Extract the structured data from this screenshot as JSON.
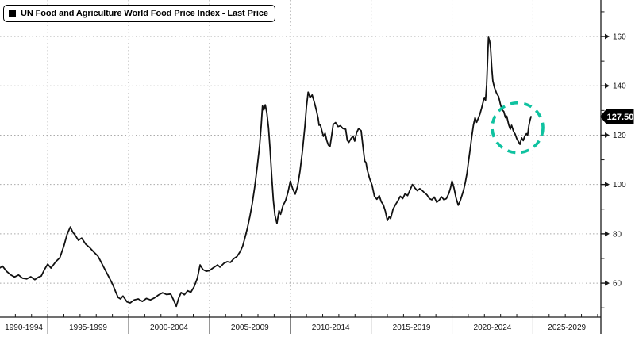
{
  "legend": {
    "label": "UN Food and Agriculture World Food Price Index - Last Price",
    "marker_color": "#000000"
  },
  "last_price": {
    "value": "127.50",
    "bg": "#000000",
    "text_color": "#ffffff"
  },
  "chart_data": {
    "type": "line",
    "title": "UN Food and Agriculture World Food Price Index - Last Price",
    "grid": "dotted",
    "background": "#ffffff",
    "line_color": "#111111",
    "grid_color": "#ababab",
    "axis_color": "#1a1a1a",
    "legend_position": "top-left",
    "last_price": 127.5,
    "x_axis": {
      "start_year": 1992.05,
      "end_year": 2029.2,
      "period_labels": [
        "1990-1994",
        "1995-1999",
        "2000-2004",
        "2005-2009",
        "2010-2014",
        "2015-2019",
        "2020-2024",
        "2025-2029"
      ],
      "period_boundaries": [
        1995,
        2000,
        2005,
        2010,
        2015,
        2020,
        2025
      ],
      "minor_tick_interval_years": 1
    },
    "y_axis": {
      "side": "right",
      "major_ticks": [
        60,
        80,
        100,
        120,
        140,
        160
      ],
      "minor_tick_interval": 10,
      "top_value": 174.8,
      "bottom_value": 46.2
    },
    "annotation_circle": {
      "center_year": 2024.05,
      "center_value": 123.0,
      "radius_years": 1.57,
      "radius_values": 10.1,
      "color": "#0fc2a0",
      "style": "dashed"
    },
    "series": [
      {
        "name": "UN Food and Agriculture World Food Price Index",
        "color": "#111111",
        "points": [
          [
            1992.05,
            66.2
          ],
          [
            1992.2,
            66.9
          ],
          [
            1992.45,
            64.8
          ],
          [
            1992.7,
            63.4
          ],
          [
            1992.95,
            62.5
          ],
          [
            1993.2,
            63.3
          ],
          [
            1993.45,
            62.0
          ],
          [
            1993.7,
            61.7
          ],
          [
            1993.95,
            62.6
          ],
          [
            1994.2,
            61.4
          ],
          [
            1994.45,
            62.5
          ],
          [
            1994.6,
            62.9
          ],
          [
            1994.8,
            65.5
          ],
          [
            1995.0,
            67.7
          ],
          [
            1995.2,
            66.1
          ],
          [
            1995.5,
            68.7
          ],
          [
            1995.75,
            70.3
          ],
          [
            1996.0,
            75.1
          ],
          [
            1996.2,
            79.9
          ],
          [
            1996.4,
            82.8
          ],
          [
            1996.55,
            80.7
          ],
          [
            1996.7,
            79.4
          ],
          [
            1996.9,
            77.4
          ],
          [
            1997.1,
            78.3
          ],
          [
            1997.35,
            75.8
          ],
          [
            1997.6,
            74.4
          ],
          [
            1997.85,
            72.6
          ],
          [
            1998.1,
            71.0
          ],
          [
            1998.3,
            68.5
          ],
          [
            1998.5,
            66.0
          ],
          [
            1998.7,
            63.5
          ],
          [
            1998.9,
            61.0
          ],
          [
            1999.05,
            59.0
          ],
          [
            1999.2,
            56.5
          ],
          [
            1999.35,
            54.2
          ],
          [
            1999.5,
            53.6
          ],
          [
            1999.65,
            54.8
          ],
          [
            1999.9,
            52.4
          ],
          [
            2000.1,
            52.0
          ],
          [
            2000.35,
            53.2
          ],
          [
            2000.6,
            53.6
          ],
          [
            2000.85,
            52.6
          ],
          [
            2001.1,
            53.8
          ],
          [
            2001.35,
            53.2
          ],
          [
            2001.6,
            54.0
          ],
          [
            2001.85,
            55.2
          ],
          [
            2002.1,
            56.1
          ],
          [
            2002.35,
            55.4
          ],
          [
            2002.6,
            55.6
          ],
          [
            2002.78,
            53.2
          ],
          [
            2002.95,
            50.6
          ],
          [
            2003.1,
            54.0
          ],
          [
            2003.25,
            56.2
          ],
          [
            2003.45,
            55.3
          ],
          [
            2003.65,
            56.9
          ],
          [
            2003.85,
            56.3
          ],
          [
            2004.05,
            58.5
          ],
          [
            2004.25,
            62.0
          ],
          [
            2004.42,
            67.4
          ],
          [
            2004.6,
            65.5
          ],
          [
            2004.8,
            64.8
          ],
          [
            2005.0,
            65.1
          ],
          [
            2005.25,
            66.3
          ],
          [
            2005.5,
            67.4
          ],
          [
            2005.65,
            66.5
          ],
          [
            2005.9,
            68.1
          ],
          [
            2006.1,
            68.7
          ],
          [
            2006.3,
            68.4
          ],
          [
            2006.5,
            69.9
          ],
          [
            2006.7,
            70.8
          ],
          [
            2006.9,
            72.8
          ],
          [
            2007.05,
            75.0
          ],
          [
            2007.2,
            78.5
          ],
          [
            2007.35,
            82.5
          ],
          [
            2007.5,
            87.0
          ],
          [
            2007.65,
            92.5
          ],
          [
            2007.8,
            99.0
          ],
          [
            2007.95,
            107.0
          ],
          [
            2008.1,
            115.5
          ],
          [
            2008.2,
            124.0
          ],
          [
            2008.28,
            131.8
          ],
          [
            2008.36,
            130.2
          ],
          [
            2008.45,
            132.3
          ],
          [
            2008.55,
            129.0
          ],
          [
            2008.65,
            123.0
          ],
          [
            2008.75,
            114.0
          ],
          [
            2008.85,
            103.5
          ],
          [
            2008.95,
            93.5
          ],
          [
            2009.05,
            87.5
          ],
          [
            2009.17,
            84.2
          ],
          [
            2009.3,
            89.4
          ],
          [
            2009.4,
            87.9
          ],
          [
            2009.55,
            91.5
          ],
          [
            2009.7,
            93.4
          ],
          [
            2009.85,
            96.7
          ],
          [
            2010.0,
            101.3
          ],
          [
            2010.15,
            98.2
          ],
          [
            2010.3,
            96.1
          ],
          [
            2010.45,
            99.2
          ],
          [
            2010.6,
            105.5
          ],
          [
            2010.75,
            113.5
          ],
          [
            2010.9,
            123.5
          ],
          [
            2011.0,
            131.5
          ],
          [
            2011.1,
            137.4
          ],
          [
            2011.22,
            135.3
          ],
          [
            2011.35,
            136.3
          ],
          [
            2011.5,
            133.0
          ],
          [
            2011.62,
            129.8
          ],
          [
            2011.72,
            126.8
          ],
          [
            2011.78,
            124.0
          ],
          [
            2011.85,
            124.3
          ],
          [
            2011.95,
            121.8
          ],
          [
            2012.05,
            119.5
          ],
          [
            2012.15,
            120.8
          ],
          [
            2012.25,
            117.9
          ],
          [
            2012.35,
            116.0
          ],
          [
            2012.45,
            115.3
          ],
          [
            2012.55,
            119.5
          ],
          [
            2012.65,
            124.3
          ],
          [
            2012.8,
            125.1
          ],
          [
            2012.95,
            123.5
          ],
          [
            2013.1,
            123.8
          ],
          [
            2013.25,
            122.7
          ],
          [
            2013.42,
            122.4
          ],
          [
            2013.52,
            117.9
          ],
          [
            2013.62,
            117.1
          ],
          [
            2013.75,
            118.6
          ],
          [
            2013.88,
            119.6
          ],
          [
            2013.98,
            117.6
          ],
          [
            2014.1,
            121.0
          ],
          [
            2014.22,
            122.7
          ],
          [
            2014.38,
            121.8
          ],
          [
            2014.5,
            114.7
          ],
          [
            2014.6,
            109.5
          ],
          [
            2014.68,
            108.9
          ],
          [
            2014.75,
            106.0
          ],
          [
            2014.9,
            102.5
          ],
          [
            2015.05,
            99.8
          ],
          [
            2015.2,
            95.3
          ],
          [
            2015.35,
            94.0
          ],
          [
            2015.5,
            95.5
          ],
          [
            2015.62,
            93.0
          ],
          [
            2015.75,
            91.8
          ],
          [
            2015.88,
            89.0
          ],
          [
            2016.0,
            85.4
          ],
          [
            2016.12,
            87.0
          ],
          [
            2016.2,
            86.2
          ],
          [
            2016.35,
            90.0
          ],
          [
            2016.5,
            91.8
          ],
          [
            2016.65,
            93.4
          ],
          [
            2016.8,
            95.2
          ],
          [
            2016.95,
            94.3
          ],
          [
            2017.1,
            96.3
          ],
          [
            2017.25,
            95.5
          ],
          [
            2017.4,
            97.8
          ],
          [
            2017.55,
            100.0
          ],
          [
            2017.7,
            98.6
          ],
          [
            2017.85,
            97.5
          ],
          [
            2018.0,
            98.3
          ],
          [
            2018.15,
            97.6
          ],
          [
            2018.3,
            96.6
          ],
          [
            2018.45,
            95.8
          ],
          [
            2018.6,
            94.3
          ],
          [
            2018.75,
            93.8
          ],
          [
            2018.9,
            94.9
          ],
          [
            2019.05,
            92.8
          ],
          [
            2019.2,
            93.6
          ],
          [
            2019.35,
            95.0
          ],
          [
            2019.5,
            93.8
          ],
          [
            2019.65,
            94.3
          ],
          [
            2019.8,
            96.4
          ],
          [
            2019.9,
            98.5
          ],
          [
            2020.0,
            101.4
          ],
          [
            2020.12,
            98.5
          ],
          [
            2020.25,
            94.5
          ],
          [
            2020.38,
            91.6
          ],
          [
            2020.5,
            93.3
          ],
          [
            2020.62,
            95.8
          ],
          [
            2020.72,
            97.9
          ],
          [
            2020.82,
            100.8
          ],
          [
            2020.92,
            104.5
          ],
          [
            2021.02,
            109.5
          ],
          [
            2021.12,
            114.5
          ],
          [
            2021.22,
            119.5
          ],
          [
            2021.32,
            124.0
          ],
          [
            2021.42,
            127.1
          ],
          [
            2021.52,
            125.2
          ],
          [
            2021.62,
            126.8
          ],
          [
            2021.72,
            128.5
          ],
          [
            2021.82,
            130.8
          ],
          [
            2021.92,
            133.5
          ],
          [
            2022.0,
            135.3
          ],
          [
            2022.07,
            134.2
          ],
          [
            2022.14,
            140.5
          ],
          [
            2022.25,
            159.7
          ],
          [
            2022.32,
            158.2
          ],
          [
            2022.38,
            155.5
          ],
          [
            2022.45,
            147.5
          ],
          [
            2022.52,
            142.0
          ],
          [
            2022.62,
            139.3
          ],
          [
            2022.75,
            137.0
          ],
          [
            2022.88,
            135.6
          ],
          [
            2023.0,
            132.2
          ],
          [
            2023.1,
            130.2
          ],
          [
            2023.2,
            129.6
          ],
          [
            2023.3,
            127.1
          ],
          [
            2023.38,
            127.7
          ],
          [
            2023.5,
            124.2
          ],
          [
            2023.6,
            122.4
          ],
          [
            2023.68,
            124.0
          ],
          [
            2023.8,
            121.5
          ],
          [
            2023.9,
            120.4
          ],
          [
            2024.0,
            118.6
          ],
          [
            2024.1,
            117.4
          ],
          [
            2024.2,
            116.3
          ],
          [
            2024.3,
            118.9
          ],
          [
            2024.4,
            117.8
          ],
          [
            2024.5,
            119.7
          ],
          [
            2024.6,
            120.6
          ],
          [
            2024.67,
            119.9
          ],
          [
            2024.75,
            123.8
          ],
          [
            2024.82,
            126.0
          ],
          [
            2024.88,
            127.5
          ]
        ]
      }
    ]
  }
}
